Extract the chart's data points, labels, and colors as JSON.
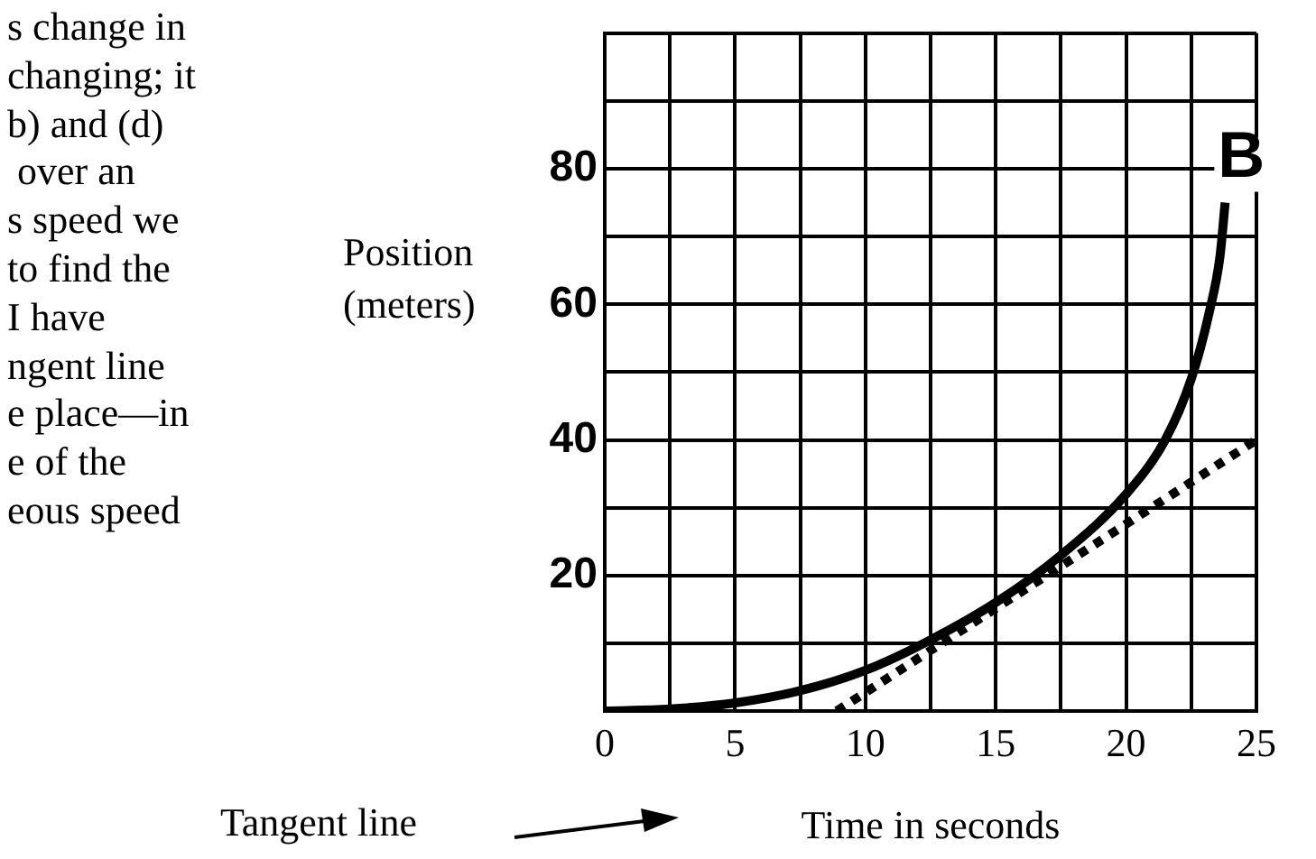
{
  "chart_data": {
    "type": "line",
    "xlabel": "Time in seconds",
    "ylabel": "Position (meters)",
    "annotations": [
      "s change in\nchanging; it\nb) and (d)\n over an\ns speed we\nto find the\nI have\nngent line\ne place—in\ne of the\neous speed",
      "Tangent line",
      {
        "text": "B",
        "x": 23.8,
        "y": 75
      }
    ],
    "series": [
      {
        "color": "#000000",
        "line_style": "solid",
        "x": [
          0,
          2.5,
          5,
          7.5,
          10,
          12.5,
          15,
          17.5,
          20,
          21.5,
          22.5,
          23.2,
          23.6,
          23.8
        ],
        "values": [
          0,
          0.3,
          1.2,
          3,
          6,
          10.5,
          16,
          23,
          32,
          40,
          49,
          59,
          67,
          75
        ]
      },
      {
        "color": "#000000",
        "line_style": "dotted",
        "x": [
          8.9,
          25
        ],
        "values": [
          0,
          40
        ]
      }
    ],
    "xlim": [
      0,
      25
    ],
    "ylim": [
      0,
      100
    ],
    "xticks": [
      0,
      {
        "value": 2.5,
        "label": null
      },
      5,
      {
        "value": 7.5,
        "label": null
      },
      10,
      {
        "value": 12.5,
        "label": null
      },
      15,
      {
        "value": 17.5,
        "label": null
      },
      20,
      {
        "value": 22.5,
        "label": null
      },
      25
    ],
    "yticks": [
      {
        "value": 0,
        "label": null
      },
      {
        "value": 10,
        "label": null
      },
      20,
      {
        "value": 30,
        "label": null
      },
      40,
      {
        "value": 50,
        "label": null
      },
      60,
      {
        "value": 70,
        "label": null
      },
      80,
      {
        "value": 90,
        "label": null
      },
      {
        "value": 100,
        "label": null
      }
    ],
    "grid": true,
    "legend": false,
    "marker": "none"
  }
}
